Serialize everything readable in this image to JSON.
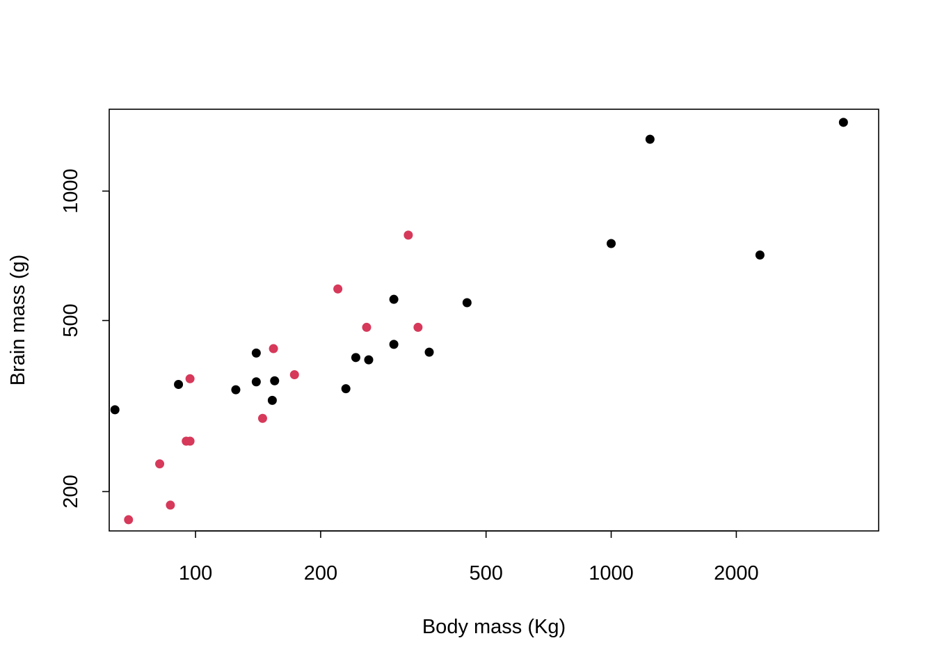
{
  "chart_data": {
    "type": "scatter",
    "title": "",
    "xlabel": "Body mass (Kg)",
    "ylabel": "Brain mass (g)",
    "x_scale": "log",
    "y_scale": "log",
    "xlim": [
      62,
      4400
    ],
    "ylim": [
      162,
      1550
    ],
    "x_ticks": [
      100,
      200,
      500,
      1000,
      2000
    ],
    "x_tick_labels": [
      "100",
      "200",
      "500",
      "1000",
      "2000"
    ],
    "y_ticks": [
      200,
      500,
      1000
    ],
    "y_tick_labels": [
      "200",
      "500",
      "1000"
    ],
    "grid": false,
    "legend": "none",
    "series": [
      {
        "color": "#000000",
        "points": [
          {
            "x": 64,
            "y": 310
          },
          {
            "x": 91,
            "y": 355
          },
          {
            "x": 125,
            "y": 345
          },
          {
            "x": 140,
            "y": 360
          },
          {
            "x": 140,
            "y": 420
          },
          {
            "x": 153,
            "y": 326
          },
          {
            "x": 155,
            "y": 362
          },
          {
            "x": 230,
            "y": 347
          },
          {
            "x": 243,
            "y": 410
          },
          {
            "x": 261,
            "y": 405
          },
          {
            "x": 300,
            "y": 440
          },
          {
            "x": 300,
            "y": 560
          },
          {
            "x": 365,
            "y": 422
          },
          {
            "x": 450,
            "y": 550
          },
          {
            "x": 1000,
            "y": 755
          },
          {
            "x": 1240,
            "y": 1320
          },
          {
            "x": 2280,
            "y": 710
          },
          {
            "x": 3620,
            "y": 1445
          }
        ]
      },
      {
        "color": "#d6395a",
        "points": [
          {
            "x": 69,
            "y": 172
          },
          {
            "x": 82,
            "y": 232
          },
          {
            "x": 87,
            "y": 186
          },
          {
            "x": 95,
            "y": 262
          },
          {
            "x": 97,
            "y": 262
          },
          {
            "x": 97,
            "y": 366
          },
          {
            "x": 145,
            "y": 296
          },
          {
            "x": 154,
            "y": 430
          },
          {
            "x": 173,
            "y": 374
          },
          {
            "x": 220,
            "y": 592
          },
          {
            "x": 258,
            "y": 482
          },
          {
            "x": 325,
            "y": 790
          },
          {
            "x": 343,
            "y": 482
          }
        ]
      }
    ]
  }
}
